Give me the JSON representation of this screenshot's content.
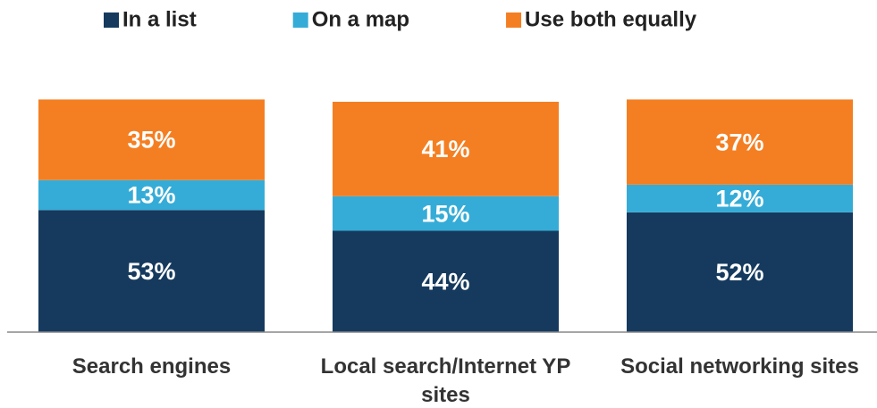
{
  "chart_data": {
    "type": "stacked-bar",
    "categories": [
      "Search engines",
      "Local search/Internet YP sites",
      "Social networking sites"
    ],
    "series": [
      {
        "name": "In a list",
        "color": "#153a5e",
        "values": [
          53,
          44,
          52
        ],
        "value_labels": [
          "53%",
          "44%",
          "52%"
        ]
      },
      {
        "name": "On a map",
        "color": "#35acd7",
        "values": [
          13,
          15,
          12
        ],
        "value_labels": [
          "13%",
          "15%",
          "12%"
        ]
      },
      {
        "name": "Use both equally",
        "color": "#f47f22",
        "values": [
          35,
          41,
          37
        ],
        "value_labels": [
          "35%",
          "41%",
          "37%"
        ]
      }
    ],
    "ylim": [
      0,
      100
    ],
    "legend": "top"
  }
}
